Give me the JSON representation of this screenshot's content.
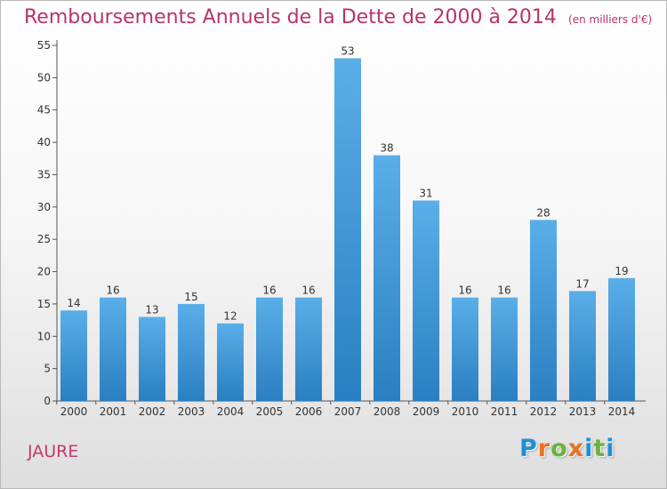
{
  "chart_data": {
    "type": "bar",
    "title": "Remboursements Annuels de la Dette de 2000 à 2014",
    "subtitle": "(en milliers d'€)",
    "categories": [
      "2000",
      "2001",
      "2002",
      "2003",
      "2004",
      "2005",
      "2006",
      "2007",
      "2008",
      "2009",
      "2010",
      "2011",
      "2012",
      "2013",
      "2014"
    ],
    "values": [
      14,
      16,
      13,
      15,
      12,
      16,
      16,
      53,
      38,
      31,
      16,
      16,
      28,
      17,
      19
    ],
    "ylim": [
      0,
      55
    ],
    "yticks": [
      0,
      5,
      10,
      15,
      20,
      25,
      30,
      35,
      40,
      45,
      50,
      55
    ],
    "grid": false,
    "colors": {
      "bar_top": "#5aaee8",
      "bar_bottom": "#2a7fc2",
      "title": "#b8336a",
      "label": "#333333"
    }
  },
  "commune": "JAURE",
  "brand": {
    "letters": [
      {
        "char": "P",
        "color": "#1f8fd6"
      },
      {
        "char": "r",
        "color": "#e8731f"
      },
      {
        "char": "o",
        "color": "#6bb33a"
      },
      {
        "char": "x",
        "color": "#e8731f"
      },
      {
        "char": "i",
        "color": "#1f8fd6"
      },
      {
        "char": "t",
        "color": "#6bb33a"
      },
      {
        "char": "i",
        "color": "#1f8fd6"
      }
    ]
  }
}
